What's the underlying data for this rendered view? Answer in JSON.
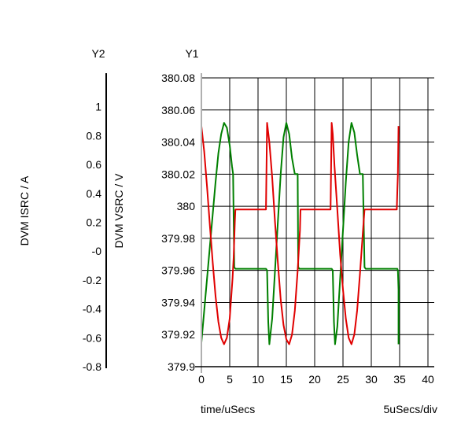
{
  "chart_data": {
    "type": "line",
    "y1_header": "Y1",
    "y2_header": "Y2",
    "y1_label": "DVM VSRC / V",
    "y2_label": "DVM ISRC / A",
    "xlabel": "time/uSecs",
    "x_scale_note": "5uSecs/div",
    "xlim": [
      0,
      40
    ],
    "y1lim": [
      379.9,
      380.08
    ],
    "y2lim": [
      -0.8,
      1.2
    ],
    "x_ticks": [
      "0",
      "5",
      "10",
      "15",
      "20",
      "25",
      "30",
      "35",
      "40"
    ],
    "y1_ticks": [
      "380.08",
      "380.06",
      "380.04",
      "380.02",
      "380",
      "379.98",
      "379.96",
      "379.94",
      "379.92",
      "379.9"
    ],
    "y2_ticks": [
      "1",
      "0.8",
      "0.6",
      "0.4",
      "0.2",
      "-0",
      "-0.2",
      "-0.4",
      "-0.6",
      "-0.8"
    ],
    "grid": true,
    "series": [
      {
        "color": "#008000",
        "axis": "y1",
        "x": [
          0,
          0.5,
          1,
          1.5,
          2,
          2.5,
          3,
          3.5,
          4,
          4.5,
          5,
          5.4,
          5.6,
          5.8,
          6,
          11.4,
          11.6,
          11.8,
          12,
          12.5,
          13,
          13.5,
          14,
          14.5,
          15,
          15.5,
          16,
          16.5,
          17,
          17.1,
          17.3,
          17.5,
          23,
          23.2,
          23.4,
          23.6,
          24,
          24.5,
          25,
          25.5,
          26,
          26.5,
          27,
          27.5,
          28,
          28.5,
          28.8,
          29,
          34.6,
          34.7,
          34.8,
          34.8
        ],
        "y": [
          379.915,
          379.935,
          379.955,
          379.975,
          379.995,
          380.015,
          380.033,
          380.045,
          380.052,
          380.049,
          380.038,
          380.025,
          380.02,
          379.962,
          379.961,
          379.961,
          379.96,
          379.928,
          379.914,
          379.93,
          379.96,
          379.99,
          380.02,
          380.043,
          380.052,
          380.045,
          380.03,
          380.02,
          380.02,
          379.962,
          379.961,
          379.961,
          379.961,
          379.96,
          379.928,
          379.914,
          379.925,
          379.955,
          379.985,
          380.015,
          380.04,
          380.052,
          380.046,
          380.032,
          380.02,
          380.02,
          379.962,
          379.961,
          379.961,
          379.96,
          379.948,
          379.914
        ]
      },
      {
        "color": "#e00000",
        "axis": "y1",
        "x": [
          0,
          0.5,
          1,
          1.5,
          2,
          2.5,
          3,
          3.5,
          4,
          4.5,
          5,
          5.5,
          5.7,
          5.9,
          6,
          11,
          11.2,
          11.4,
          11.6,
          12,
          12.5,
          13,
          13.5,
          14,
          14.5,
          15,
          15.5,
          16,
          16.5,
          17,
          17.4,
          17.5,
          22.6,
          22.8,
          23,
          23.2,
          23.5,
          24,
          24.5,
          25,
          25.5,
          26,
          26.5,
          27,
          27.5,
          28,
          28.6,
          28.8,
          34.3,
          34.5,
          34.6,
          34.7,
          34.8
        ],
        "y": [
          380.05,
          380.034,
          380.012,
          379.988,
          379.965,
          379.944,
          379.928,
          379.918,
          379.914,
          379.918,
          379.93,
          379.955,
          379.968,
          379.99,
          379.998,
          379.998,
          379.998,
          379.998,
          380.052,
          380.04,
          380.018,
          379.99,
          379.965,
          379.942,
          379.926,
          379.917,
          379.914,
          379.92,
          379.935,
          379.96,
          379.985,
          379.998,
          379.998,
          379.998,
          380.052,
          380.045,
          380.025,
          379.998,
          379.97,
          379.948,
          379.93,
          379.918,
          379.914,
          379.92,
          379.935,
          379.958,
          379.988,
          379.998,
          379.998,
          379.998,
          380.01,
          380.02,
          380.05
        ]
      }
    ]
  }
}
